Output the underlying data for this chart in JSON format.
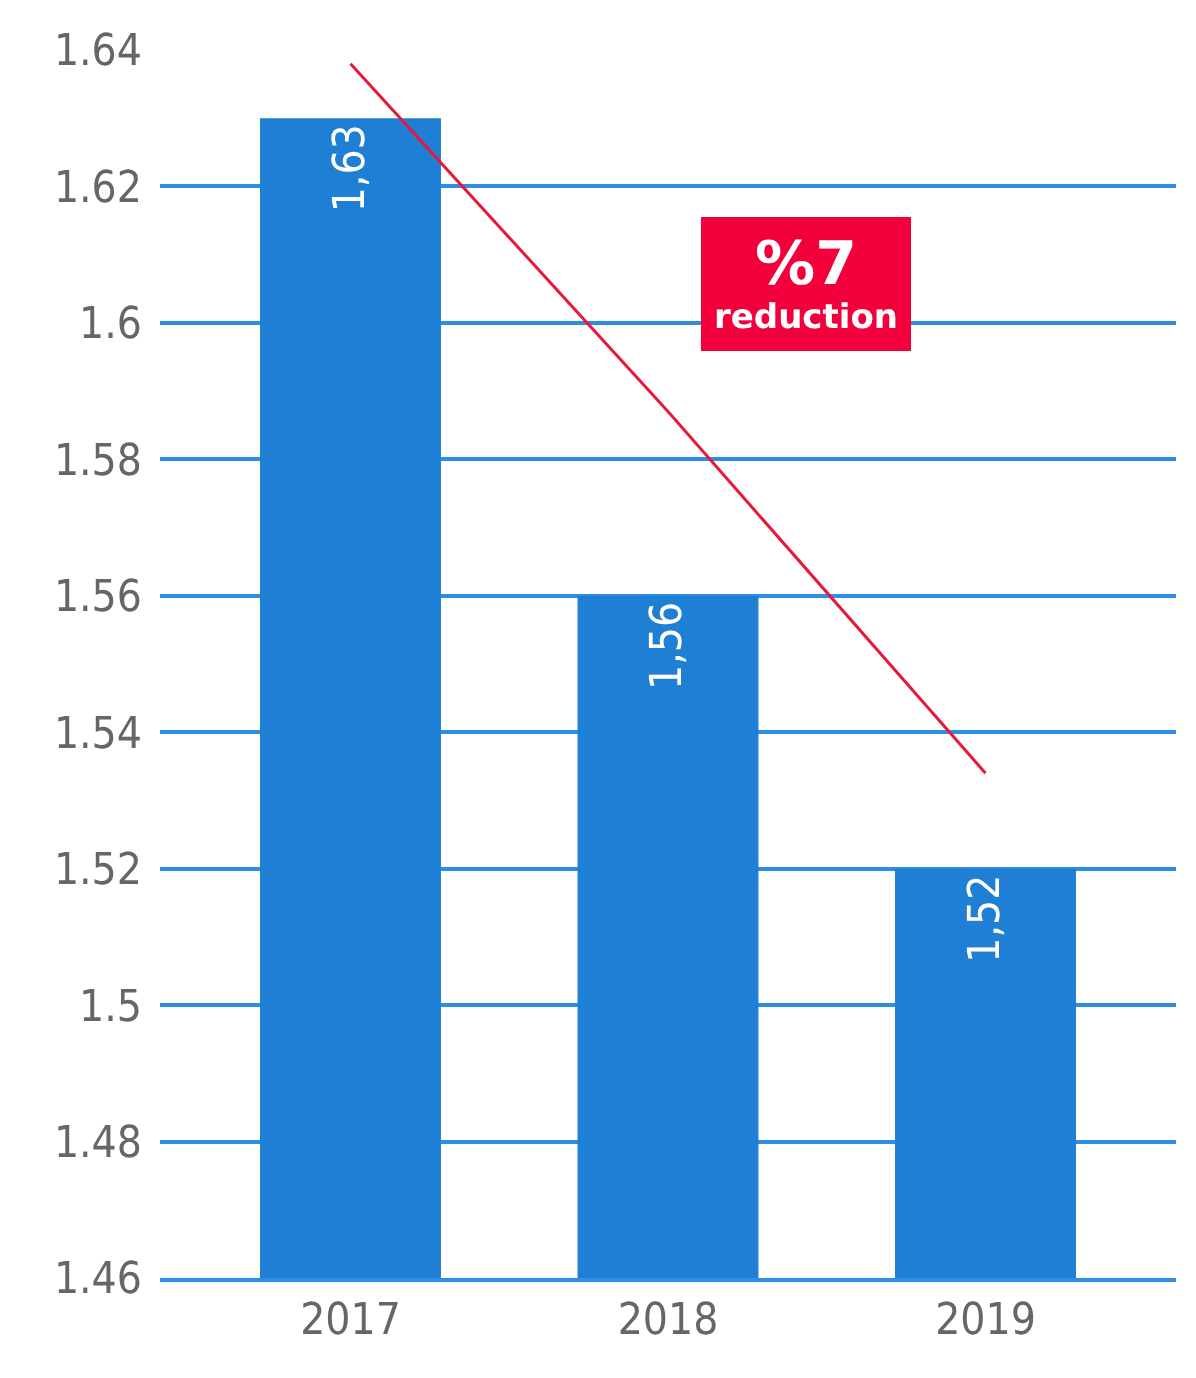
{
  "chart_data": {
    "type": "bar",
    "categories": [
      "2017",
      "2018",
      "2019"
    ],
    "series": [
      {
        "name": null,
        "color": "#1f7fd4",
        "values": [
          1.63,
          1.56,
          1.52
        ],
        "value_labels": [
          "1,63",
          "1,56",
          "1,52"
        ]
      },
      {
        "type": "line",
        "color": "#e8173c",
        "values": [
          1.638,
          1.587,
          1.534
        ]
      }
    ],
    "ylim": [
      1.46,
      1.64
    ],
    "yticks": [
      1.46,
      1.48,
      1.5,
      1.52,
      1.54,
      1.56,
      1.58,
      1.6,
      1.62,
      1.64
    ],
    "grid": "y",
    "marker": "none",
    "line_style": "solid",
    "annotations": [
      "%7\nreduction"
    ]
  }
}
